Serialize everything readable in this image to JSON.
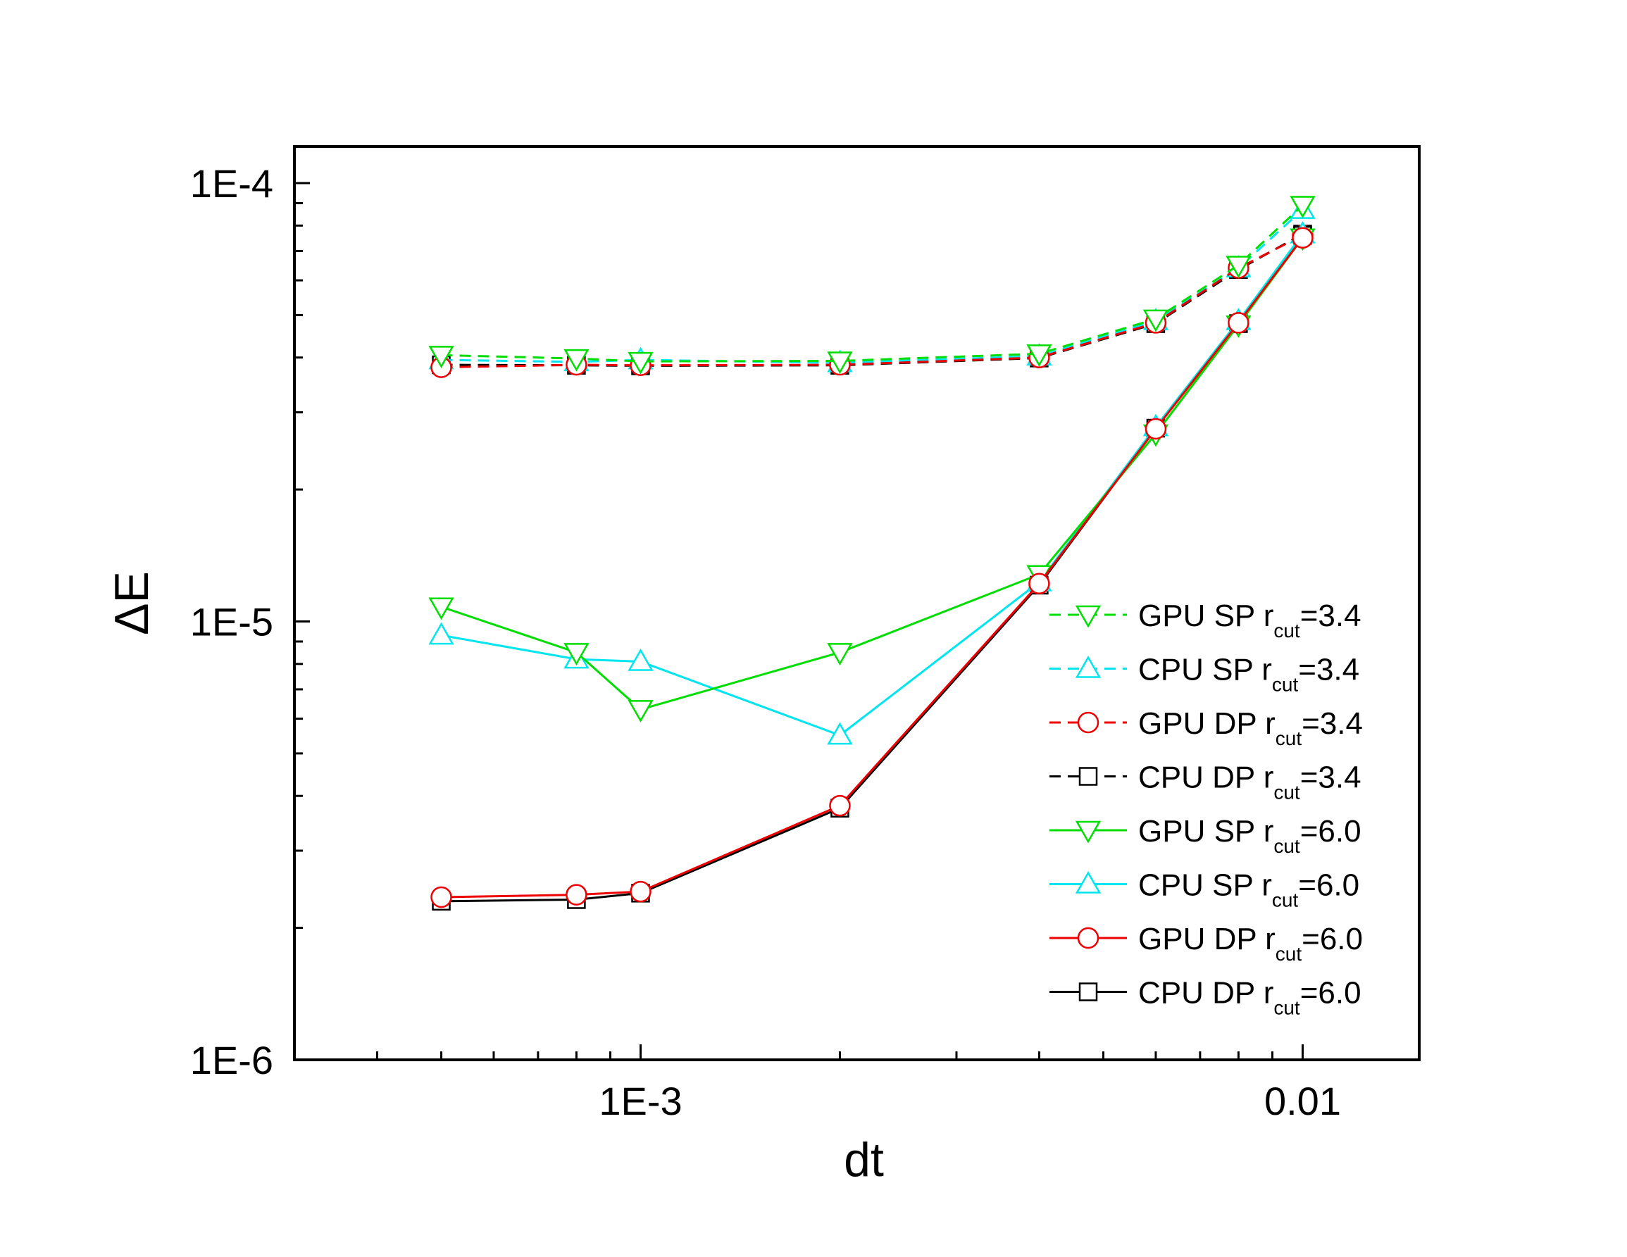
{
  "chart_data": {
    "type": "line",
    "title": "",
    "xlabel": "dt",
    "ylabel": "ΔE",
    "xscale": "log",
    "yscale": "log",
    "xlim": [
      0.0003,
      0.015
    ],
    "ylim": [
      1e-06,
      0.0001
    ],
    "x_ticks": [
      {
        "value": 0.001,
        "label": "1E-3"
      },
      {
        "value": 0.01,
        "label": "0.01"
      }
    ],
    "y_ticks": [
      {
        "value": 1e-06,
        "label": "1E-6"
      },
      {
        "value": 1e-05,
        "label": "1E-5"
      },
      {
        "value": 0.0001,
        "label": "1E-4"
      }
    ],
    "grid": false,
    "legend_position": "right-center",
    "x": [
      0.0005,
      0.0008,
      0.001,
      0.002,
      0.004,
      0.006,
      0.008,
      0.01
    ],
    "series": [
      {
        "name": "GPU SP",
        "name_sub": "cut",
        "name_prefix": "r",
        "name_value": "=3.4",
        "color": "#00dd00",
        "dash": "dashed",
        "marker": "triangle-down",
        "values": [
          4.05e-05,
          3.98e-05,
          3.92e-05,
          3.93e-05,
          4.08e-05,
          4.9e-05,
          6.5e-05,
          8.9e-05
        ]
      },
      {
        "name": "CPU SP",
        "name_sub": "cut",
        "name_prefix": "r",
        "name_value": "=3.4",
        "color": "#00e5ee",
        "dash": "dashed",
        "marker": "triangle-up",
        "values": [
          3.95e-05,
          3.91e-05,
          3.95e-05,
          3.89e-05,
          4.03e-05,
          4.85e-05,
          6.4e-05,
          8.7e-05
        ]
      },
      {
        "name": "GPU DP",
        "name_sub": "cut",
        "name_prefix": "r",
        "name_value": "=3.4",
        "color": "#ee0000",
        "dash": "dashed",
        "marker": "circle",
        "values": [
          3.8e-05,
          3.85e-05,
          3.84e-05,
          3.85e-05,
          4e-05,
          4.8e-05,
          6.4e-05,
          7.6e-05
        ]
      },
      {
        "name": "CPU DP",
        "name_sub": "cut",
        "name_prefix": "r",
        "name_value": "=3.4",
        "color": "#000000",
        "dash": "dashed",
        "marker": "square",
        "values": [
          3.85e-05,
          3.84e-05,
          3.83e-05,
          3.84e-05,
          3.99e-05,
          4.78e-05,
          6.35e-05,
          7.65e-05
        ]
      },
      {
        "name": "GPU SP",
        "name_sub": "cut",
        "name_prefix": "r",
        "name_value": "=6.0",
        "color": "#00dd00",
        "dash": "solid",
        "marker": "triangle-down",
        "values": [
          1.08e-05,
          8.5e-06,
          6.3e-06,
          8.5e-06,
          1.28e-05,
          2.68e-05,
          4.75e-05,
          7.5e-05
        ]
      },
      {
        "name": "CPU SP",
        "name_sub": "cut",
        "name_prefix": "r",
        "name_value": "=6.0",
        "color": "#00e5ee",
        "dash": "solid",
        "marker": "triangle-up",
        "values": [
          9.3e-06,
          8.2e-06,
          8.1e-06,
          5.5e-06,
          1.23e-05,
          2.78e-05,
          4.85e-05,
          7.65e-05
        ]
      },
      {
        "name": "GPU DP",
        "name_sub": "cut",
        "name_prefix": "r",
        "name_value": "=6.0",
        "color": "#ee0000",
        "dash": "solid",
        "marker": "circle",
        "values": [
          2.35e-06,
          2.38e-06,
          2.42e-06,
          3.8e-06,
          1.22e-05,
          2.75e-05,
          4.8e-05,
          7.5e-05
        ]
      },
      {
        "name": "CPU DP",
        "name_sub": "cut",
        "name_prefix": "r",
        "name_value": "=6.0",
        "color": "#000000",
        "dash": "solid",
        "marker": "square",
        "values": [
          2.3e-06,
          2.32e-06,
          2.4e-06,
          3.75e-06,
          1.21e-05,
          2.76e-05,
          4.78e-05,
          7.6e-05
        ]
      }
    ]
  }
}
